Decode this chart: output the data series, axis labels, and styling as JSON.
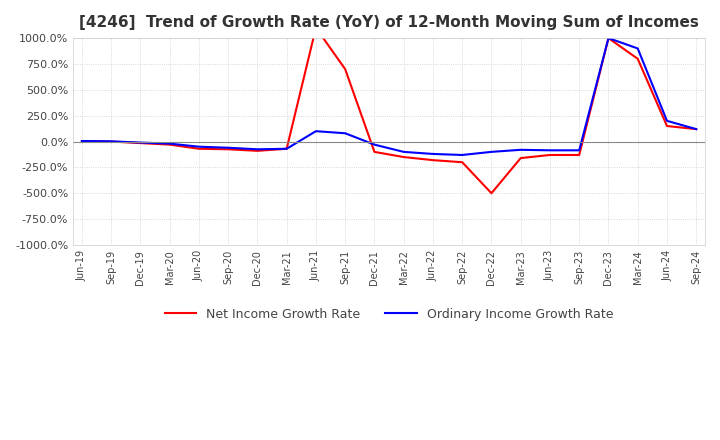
{
  "title": "[4246]  Trend of Growth Rate (YoY) of 12-Month Moving Sum of Incomes",
  "ylim": [
    -1000,
    1000
  ],
  "yticks": [
    -1000,
    -750,
    -500,
    -250,
    0,
    250,
    500,
    750,
    1000
  ],
  "ytick_labels": [
    "-1000.0%",
    "-750.0%",
    "-500.0%",
    "-250.0%",
    "0.0%",
    "250.0%",
    "500.0%",
    "750.0%",
    "1000.0%"
  ],
  "background_color": "#ffffff",
  "plot_bg_color": "#ffffff",
  "grid_color": "#cccccc",
  "line1_color": "#0000ff",
  "line2_color": "#ff0000",
  "legend1": "Ordinary Income Growth Rate",
  "legend2": "Net Income Growth Rate",
  "x_labels": [
    "Jun-19",
    "Sep-19",
    "Dec-19",
    "Mar-20",
    "Jun-20",
    "Sep-20",
    "Dec-20",
    "Mar-21",
    "Jun-21",
    "Sep-21",
    "Dec-21",
    "Mar-22",
    "Jun-22",
    "Sep-22",
    "Dec-22",
    "Mar-23",
    "Jun-23",
    "Sep-23",
    "Dec-23",
    "Mar-24",
    "Jun-24",
    "Sep-24"
  ],
  "ordinary_income": [
    5,
    2,
    -10,
    -20,
    -50,
    -60,
    -75,
    -70,
    100,
    80,
    -30,
    -100,
    -120,
    -130,
    -100,
    -80,
    -85,
    -85,
    1000,
    900,
    200,
    120
  ],
  "net_income": [
    5,
    0,
    -15,
    -30,
    -70,
    -75,
    -90,
    -70,
    1100,
    700,
    -100,
    -150,
    -180,
    -200,
    -500,
    -160,
    -130,
    -130,
    1000,
    800,
    150,
    120
  ]
}
